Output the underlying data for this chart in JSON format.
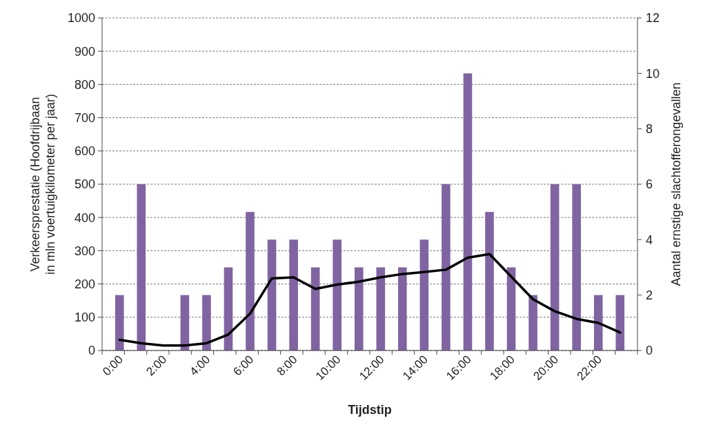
{
  "chart_data": {
    "type": "bar",
    "xlabel": "Tijdstip",
    "ylabel": "Verkeersprestatie (Hoofdrijbaan\nin mln voertuigkilometer per jaar)",
    "y2label": "Aantal ernstige slachtofferongevallen",
    "categories": [
      "0:00",
      null,
      "2:00",
      null,
      "4:00",
      null,
      "6:00",
      null,
      "8:00",
      null,
      "10:00",
      null,
      "12:00",
      null,
      "14:00",
      null,
      "16:00",
      null,
      "18:00",
      null,
      "20:00",
      null,
      "22:00",
      null
    ],
    "series": [
      {
        "axis": "y2",
        "color": "#8064a2",
        "values": [
          2,
          6,
          0,
          2,
          2,
          3,
          5,
          4,
          4,
          3,
          4,
          3,
          3,
          3,
          4,
          6,
          10,
          5,
          3,
          2,
          6,
          6,
          2,
          2
        ]
      },
      {
        "type": "line",
        "axis": "y",
        "color": "#000000",
        "values": [
          32,
          22,
          15,
          15,
          22,
          48,
          111,
          217,
          220,
          185,
          198,
          207,
          220,
          230,
          236,
          243,
          279,
          290,
          222,
          154,
          118,
          95,
          83,
          54
        ]
      }
    ],
    "ylim": [
      0,
      1000
    ],
    "yticks": [
      0,
      100,
      200,
      300,
      400,
      500,
      600,
      700,
      800,
      900,
      1000
    ],
    "y2lim": [
      0,
      12
    ],
    "y2ticks": [
      0,
      2,
      4,
      6,
      8,
      10,
      12
    ],
    "grid": "y",
    "marker": "none",
    "line_style": "solid"
  }
}
